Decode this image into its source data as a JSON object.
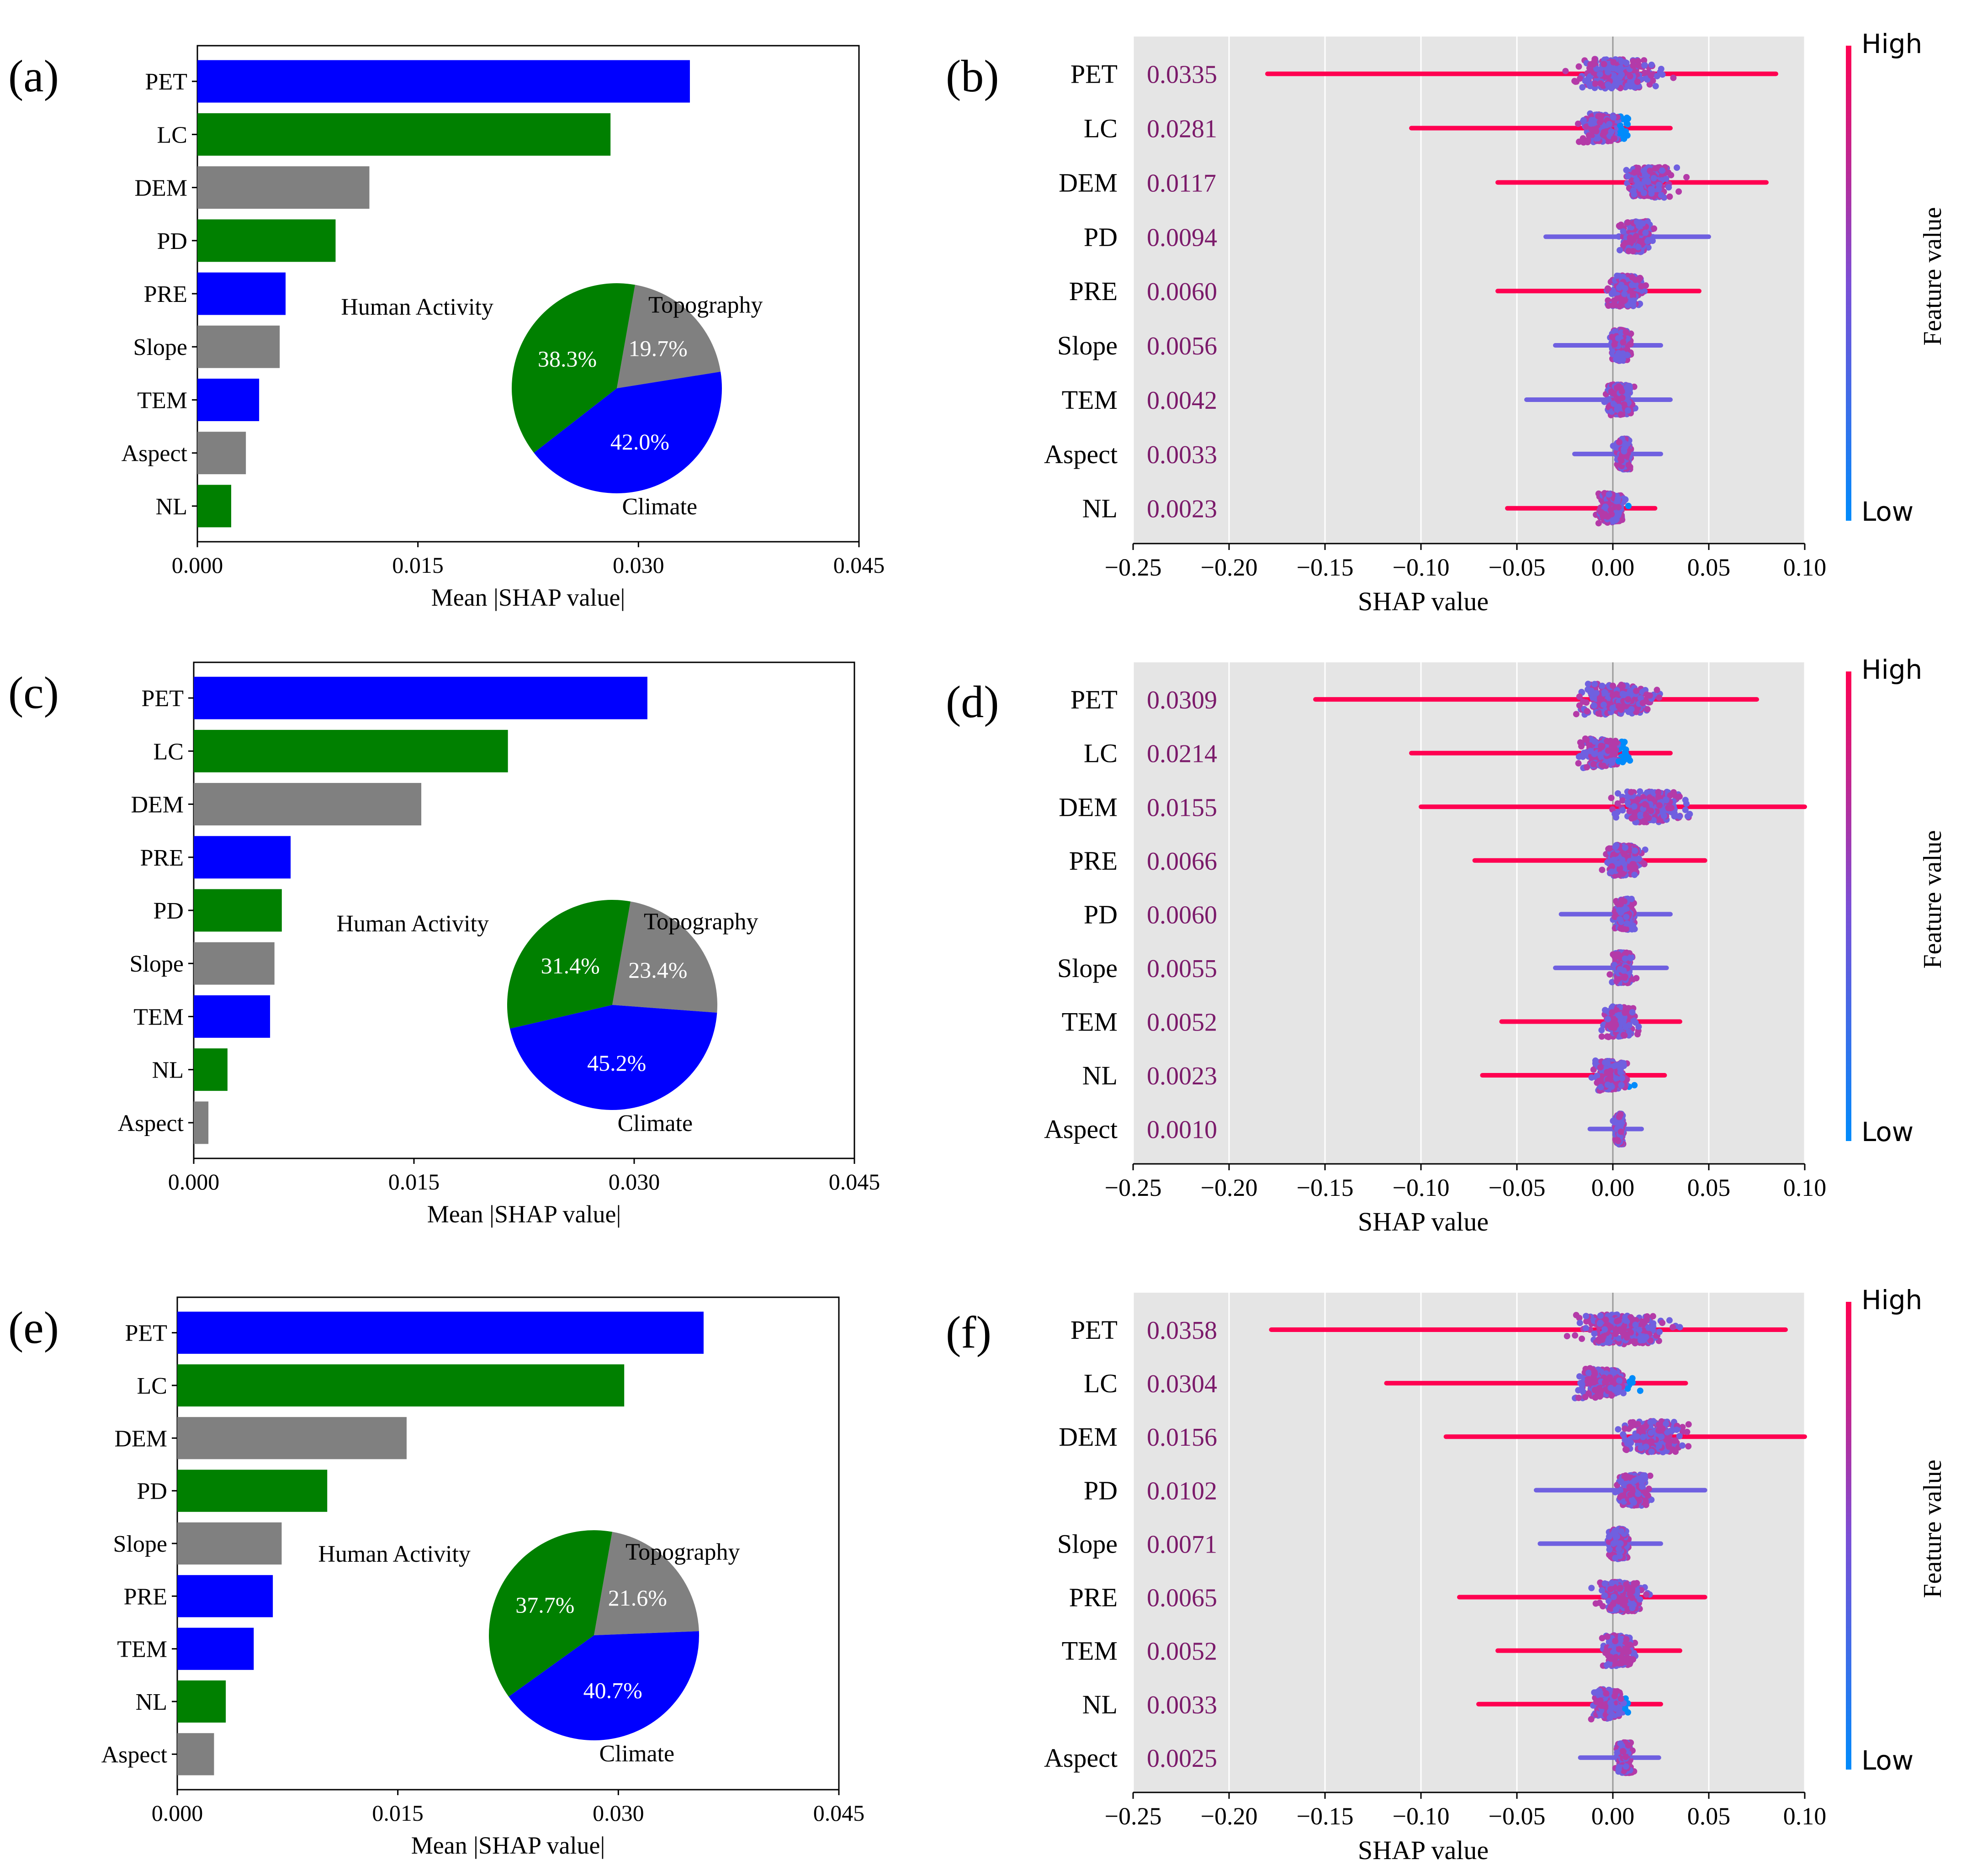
{
  "chart_data": [
    {
      "id": "a",
      "type": "bar",
      "orientation": "horizontal",
      "panel_label": "(a)",
      "xlabel": "Mean |SHAP value|",
      "xlim": [
        0,
        0.045
      ],
      "xticks": [
        "0.000",
        "0.015",
        "0.030",
        "0.045"
      ],
      "categories": [
        "PET",
        "LC",
        "DEM",
        "PD",
        "PRE",
        "Slope",
        "TEM",
        "Aspect",
        "NL"
      ],
      "values": [
        0.0335,
        0.0281,
        0.0117,
        0.0094,
        0.006,
        0.0056,
        0.0042,
        0.0033,
        0.0023
      ],
      "groups": [
        "Climate",
        "Human Activity",
        "Topography",
        "Human Activity",
        "Climate",
        "Topography",
        "Climate",
        "Topography",
        "Human Activity"
      ],
      "inset_pie": {
        "type": "pie",
        "labels": [
          "Topography",
          "Climate",
          "Human Activity"
        ],
        "values": [
          19.7,
          42.0,
          38.3
        ],
        "value_labels": [
          "19.7%",
          "42.0%",
          "38.3%"
        ]
      }
    },
    {
      "id": "b",
      "type": "beeswarm",
      "panel_label": "(b)",
      "xlabel": "SHAP value",
      "xlim": [
        -0.25,
        0.1
      ],
      "xticks": [
        "−0.25",
        "−0.20",
        "−0.15",
        "−0.10",
        "−0.05",
        "0.00",
        "0.05",
        "0.10"
      ],
      "features": [
        "PET",
        "LC",
        "DEM",
        "PD",
        "PRE",
        "Slope",
        "TEM",
        "Aspect",
        "NL"
      ],
      "mean_abs": [
        "0.0335",
        "0.0281",
        "0.0117",
        "0.0094",
        "0.0060",
        "0.0056",
        "0.0042",
        "0.0033",
        "0.0023"
      ],
      "ranges": [
        [
          -0.18,
          0.085
        ],
        [
          -0.105,
          0.03
        ],
        [
          -0.06,
          0.08
        ],
        [
          -0.035,
          0.05
        ],
        [
          -0.06,
          0.045
        ],
        [
          -0.03,
          0.025
        ],
        [
          -0.045,
          0.03
        ],
        [
          -0.02,
          0.025
        ],
        [
          -0.055,
          0.022
        ]
      ],
      "colorbar": {
        "label": "Feature value",
        "high": "High",
        "low": "Low"
      }
    },
    {
      "id": "c",
      "type": "bar",
      "orientation": "horizontal",
      "panel_label": "(c)",
      "xlabel": "Mean |SHAP value|",
      "xlim": [
        0,
        0.045
      ],
      "xticks": [
        "0.000",
        "0.015",
        "0.030",
        "0.045"
      ],
      "categories": [
        "PET",
        "LC",
        "DEM",
        "PRE",
        "PD",
        "Slope",
        "TEM",
        "NL",
        "Aspect"
      ],
      "values": [
        0.0309,
        0.0214,
        0.0155,
        0.0066,
        0.006,
        0.0055,
        0.0052,
        0.0023,
        0.001
      ],
      "groups": [
        "Climate",
        "Human Activity",
        "Topography",
        "Climate",
        "Human Activity",
        "Topography",
        "Climate",
        "Human Activity",
        "Topography"
      ],
      "inset_pie": {
        "type": "pie",
        "labels": [
          "Topography",
          "Climate",
          "Human Activity"
        ],
        "values": [
          23.4,
          45.2,
          31.4
        ],
        "value_labels": [
          "23.4%",
          "45.2%",
          "31.4%"
        ]
      }
    },
    {
      "id": "d",
      "type": "beeswarm",
      "panel_label": "(d)",
      "xlabel": "SHAP value",
      "xlim": [
        -0.25,
        0.1
      ],
      "xticks": [
        "−0.25",
        "−0.20",
        "−0.15",
        "−0.10",
        "−0.05",
        "0.00",
        "0.05",
        "0.10"
      ],
      "features": [
        "PET",
        "LC",
        "DEM",
        "PRE",
        "PD",
        "Slope",
        "TEM",
        "NL",
        "Aspect"
      ],
      "mean_abs": [
        "0.0309",
        "0.0214",
        "0.0155",
        "0.0066",
        "0.0060",
        "0.0055",
        "0.0052",
        "0.0023",
        "0.0010"
      ],
      "ranges": [
        [
          -0.155,
          0.075
        ],
        [
          -0.105,
          0.03
        ],
        [
          -0.1,
          0.1
        ],
        [
          -0.072,
          0.048
        ],
        [
          -0.027,
          0.03
        ],
        [
          -0.03,
          0.028
        ],
        [
          -0.058,
          0.035
        ],
        [
          -0.068,
          0.027
        ],
        [
          -0.012,
          0.015
        ]
      ],
      "colorbar": {
        "label": "Feature value",
        "high": "High",
        "low": "Low"
      }
    },
    {
      "id": "e",
      "type": "bar",
      "orientation": "horizontal",
      "panel_label": "(e)",
      "xlabel": "Mean |SHAP value|",
      "xlim": [
        0,
        0.045
      ],
      "xticks": [
        "0.000",
        "0.015",
        "0.030",
        "0.045"
      ],
      "categories": [
        "PET",
        "LC",
        "DEM",
        "PD",
        "Slope",
        "PRE",
        "TEM",
        "NL",
        "Aspect"
      ],
      "values": [
        0.0358,
        0.0304,
        0.0156,
        0.0102,
        0.0071,
        0.0065,
        0.0052,
        0.0033,
        0.0025
      ],
      "groups": [
        "Climate",
        "Human Activity",
        "Topography",
        "Human Activity",
        "Topography",
        "Climate",
        "Climate",
        "Human Activity",
        "Topography"
      ],
      "inset_pie": {
        "type": "pie",
        "labels": [
          "Topography",
          "Climate",
          "Human Activity"
        ],
        "values": [
          21.6,
          40.7,
          37.7
        ],
        "value_labels": [
          "21.6%",
          "40.7%",
          "37.7%"
        ]
      }
    },
    {
      "id": "f",
      "type": "beeswarm",
      "panel_label": "(f)",
      "xlabel": "SHAP value",
      "xlim": [
        -0.25,
        0.1
      ],
      "xticks": [
        "−0.25",
        "−0.20",
        "−0.15",
        "−0.10",
        "−0.05",
        "0.00",
        "0.05",
        "0.10"
      ],
      "features": [
        "PET",
        "LC",
        "DEM",
        "PD",
        "Slope",
        "PRE",
        "TEM",
        "NL",
        "Aspect"
      ],
      "mean_abs": [
        "0.0358",
        "0.0304",
        "0.0156",
        "0.0102",
        "0.0071",
        "0.0065",
        "0.0052",
        "0.0033",
        "0.0025"
      ],
      "ranges": [
        [
          -0.178,
          0.09
        ],
        [
          -0.118,
          0.038
        ],
        [
          -0.087,
          0.1
        ],
        [
          -0.04,
          0.048
        ],
        [
          -0.038,
          0.025
        ],
        [
          -0.08,
          0.048
        ],
        [
          -0.06,
          0.035
        ],
        [
          -0.07,
          0.025
        ],
        [
          -0.017,
          0.024
        ]
      ],
      "colorbar": {
        "label": "Feature value",
        "high": "High",
        "low": "Low"
      }
    }
  ],
  "colors": {
    "Climate": "#0000ff",
    "Human Activity": "#008000",
    "Topography": "#808080",
    "high": "#ff0051",
    "low": "#008bfb",
    "mean_text": "#7b1a6a",
    "swarm_bg": "#e5e5e5"
  }
}
